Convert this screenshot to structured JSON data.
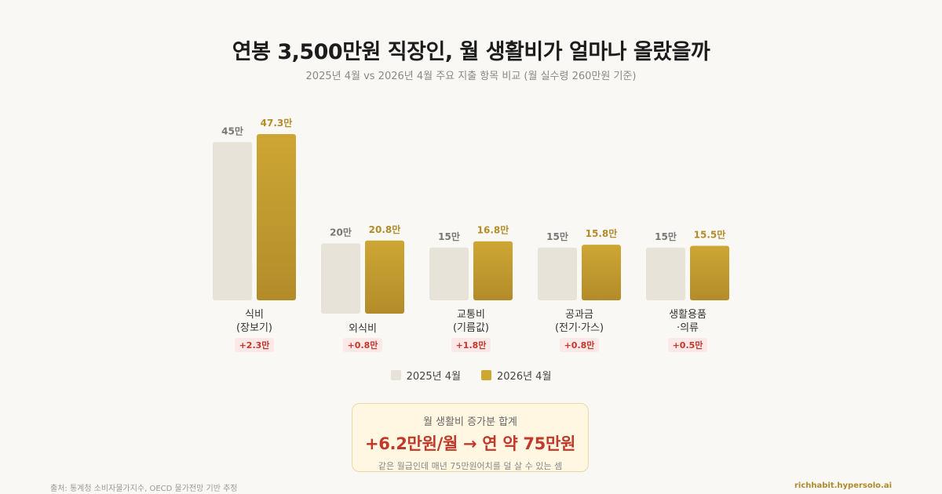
{
  "header": {
    "title": "연봉 3,500만원 직장인, 월 생활비가 얼마나 올랐을까",
    "subtitle": "2025년 4월 vs 2026년 4월 주요 지출 항목 비교 (월 실수령 260만원 기준)"
  },
  "colors": {
    "series_2025": "#e8e3d8",
    "series_2026_top": "#cda634",
    "series_2026_bottom": "#b38c2a",
    "label_2025": "#777777",
    "label_2026": "#b38c2a",
    "delta_text": "#c0392b",
    "delta_bg": "#fde8e8"
  },
  "chart_data": {
    "type": "bar",
    "categories": [
      [
        "식비",
        "(장보기)"
      ],
      [
        "외식비"
      ],
      [
        "교통비",
        "(기름값)"
      ],
      [
        "공과금",
        "(전기·가스)"
      ],
      [
        "생활용품",
        "·의류"
      ]
    ],
    "series": [
      {
        "name": "2025년 4월",
        "values": [
          45,
          20,
          15,
          15,
          15
        ],
        "labels": [
          "45만",
          "20만",
          "15만",
          "15만",
          "15만"
        ]
      },
      {
        "name": "2026년 4월",
        "values": [
          47.3,
          20.8,
          16.8,
          15.8,
          15.5
        ],
        "labels": [
          "47.3만",
          "20.8만",
          "16.8만",
          "15.8만",
          "15.5만"
        ]
      }
    ],
    "deltas": [
      "+2.3만",
      "+0.8만",
      "+1.8만",
      "+0.8만",
      "+0.5만"
    ],
    "unit": "만원"
  },
  "legend": {
    "items": [
      "2025년 4월",
      "2026년 4월"
    ]
  },
  "summary": {
    "label": "월 생활비 증가분 합계",
    "value": "+6.2만원/월 → 연 약 75만원",
    "note": "같은 월급인데 매년 75만원어치를 덜 살 수 있는 셈"
  },
  "footer": {
    "source": "출처: 통계청 소비자물가지수, OECD 물가전망 기반 추정",
    "site": "richhabit.hypersolo.ai"
  }
}
